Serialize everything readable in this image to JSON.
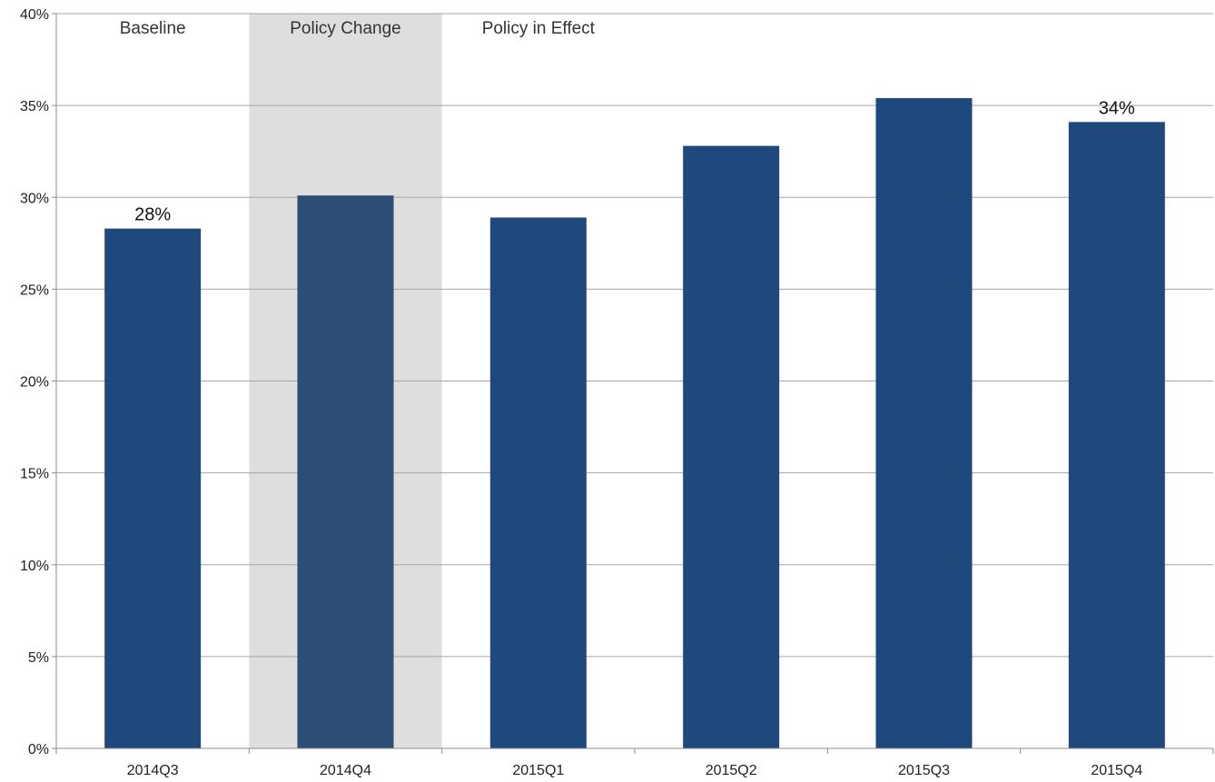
{
  "chart_data": {
    "type": "bar",
    "title": "",
    "xlabel": "",
    "ylabel": "",
    "categories": [
      "2014Q3",
      "2014Q4",
      "2015Q1",
      "2015Q2",
      "2015Q3",
      "2015Q4"
    ],
    "values": [
      28.3,
      30.1,
      28.9,
      32.8,
      35.4,
      34.1
    ],
    "ylim": [
      0,
      40
    ],
    "yticks": [
      0,
      5,
      10,
      15,
      20,
      25,
      30,
      35,
      40
    ],
    "ytick_labels": [
      "0%",
      "5%",
      "10%",
      "15%",
      "20%",
      "25%",
      "30%",
      "35%",
      "40%"
    ],
    "grid": true,
    "legend": "none",
    "data_labels": [
      {
        "category": "2014Q3",
        "text": "28%"
      },
      {
        "category": "2015Q4",
        "text": "34%"
      }
    ],
    "phases": [
      {
        "label": "Baseline",
        "categories": [
          "2014Q3"
        ],
        "shaded": false
      },
      {
        "label": "Policy Change",
        "categories": [
          "2014Q4"
        ],
        "shaded": true
      },
      {
        "label": "Policy in Effect",
        "categories": [
          "2015Q1"
        ],
        "shaded": false
      }
    ],
    "colors": {
      "bar": "#1f497d",
      "bar_highlight": "#2c4d75",
      "shade": "#dedede"
    }
  }
}
